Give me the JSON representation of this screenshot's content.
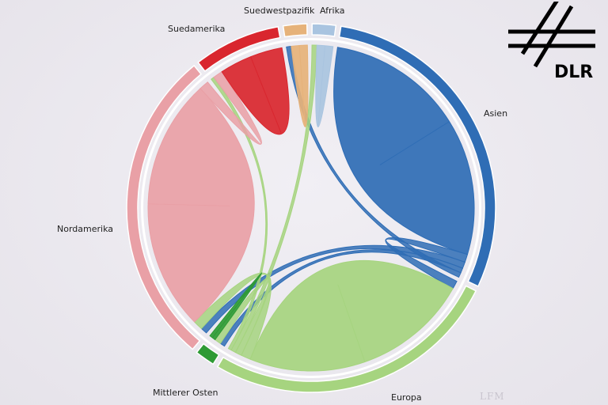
{
  "chart_data": {
    "type": "chord",
    "groups": [
      {
        "name": "Afrika",
        "color": "#a9c4e0"
      },
      {
        "name": "Asien",
        "color": "#2f6db5"
      },
      {
        "name": "Europa",
        "color": "#a6d47f"
      },
      {
        "name": "Mittlerer Osten",
        "color": "#2e9a34"
      },
      {
        "name": "Nordamerika",
        "color": "#e9a0a6"
      },
      {
        "name": "Suedamerika",
        "color": "#d9262e"
      },
      {
        "name": "Suedwestpazifik",
        "color": "#e6b27a"
      }
    ],
    "flows": [
      {
        "from": "Asien",
        "to": "Asien",
        "value": 85
      },
      {
        "from": "Asien",
        "to": "Europa",
        "value": 5
      },
      {
        "from": "Asien",
        "to": "Nordamerika",
        "value": 4
      },
      {
        "from": "Asien",
        "to": "Mittlerer Osten",
        "value": 3
      },
      {
        "from": "Asien",
        "to": "Suedwestpazifik",
        "value": 3
      },
      {
        "from": "Europa",
        "to": "Europa",
        "value": 72
      },
      {
        "from": "Europa",
        "to": "Nordamerika",
        "value": 6
      },
      {
        "from": "Europa",
        "to": "Mittlerer Osten",
        "value": 4
      },
      {
        "from": "Europa",
        "to": "Afrika",
        "value": 3
      },
      {
        "from": "Europa",
        "to": "Suedamerika",
        "value": 2
      },
      {
        "from": "Nordamerika",
        "to": "Nordamerika",
        "value": 80
      },
      {
        "from": "Nordamerika",
        "to": "Suedamerika",
        "value": 6
      },
      {
        "from": "Suedamerika",
        "to": "Suedamerika",
        "value": 20
      },
      {
        "from": "Suedwestpazifik",
        "to": "Suedwestpazifik",
        "value": 5
      },
      {
        "from": "Afrika",
        "to": "Afrika",
        "value": 5
      },
      {
        "from": "Mittlerer Osten",
        "to": "Mittlerer Osten",
        "value": 2
      }
    ]
  },
  "logo": {
    "text": "DLR"
  },
  "watermark": "LFM"
}
